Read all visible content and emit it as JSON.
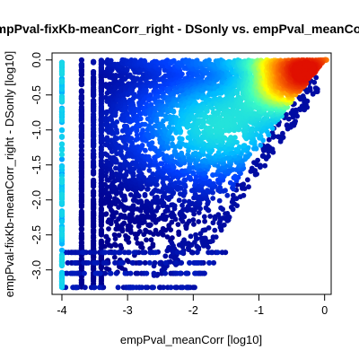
{
  "chart_data": {
    "type": "scatter",
    "title": "empPval-fixKb-meanCorr_right - DSonly vs. empPval_meanCorr",
    "xlabel": "empPval_meanCorr [log10]",
    "ylabel": "empPval-fixKb-meanCorr_right - DSonly [log10]",
    "xlim": [
      -4.15,
      0.1
    ],
    "ylim": [
      -3.35,
      0.1
    ],
    "x_ticks": [
      {
        "value": -4,
        "label": "-4"
      },
      {
        "value": -3,
        "label": "-3"
      },
      {
        "value": -2,
        "label": "-2"
      },
      {
        "value": -1,
        "label": "-1"
      },
      {
        "value": 0,
        "label": "0"
      }
    ],
    "y_ticks": [
      {
        "value": 0,
        "label": "0.0"
      },
      {
        "value": -0.5,
        "label": "-0.5"
      },
      {
        "value": -1,
        "label": "-1.0"
      },
      {
        "value": -1.5,
        "label": "-1.5"
      },
      {
        "value": -2,
        "label": "-2.0"
      },
      {
        "value": -2.5,
        "label": "-2.5"
      },
      {
        "value": -3,
        "label": "-3.0"
      }
    ],
    "grid": false,
    "legend": "none",
    "color_scale": [
      "#00008f",
      "#0040ff",
      "#00c0ff",
      "#40ffbf",
      "#ffff00",
      "#ff8000",
      "#e01000"
    ],
    "density_peak": {
      "x": -0.3,
      "y": -0.25
    },
    "discrete_x_columns": [
      -4,
      -3.7,
      -3.52,
      -3.4
    ],
    "discrete_y_rows": [
      -2.75,
      -2.9,
      -3.05,
      -3.25
    ],
    "upper_boundary": [
      [
        -4,
        0
      ],
      [
        0,
        0
      ]
    ],
    "lower_boundary": [
      [
        -4,
        -3.25
      ],
      [
        -3,
        -3.0
      ],
      [
        -2.5,
        -2.7
      ],
      [
        -1.7,
        -2.3
      ],
      [
        -1.2,
        -1.6
      ],
      [
        -0.8,
        -1.0
      ],
      [
        -0.4,
        -0.5
      ],
      [
        0,
        0
      ]
    ]
  }
}
